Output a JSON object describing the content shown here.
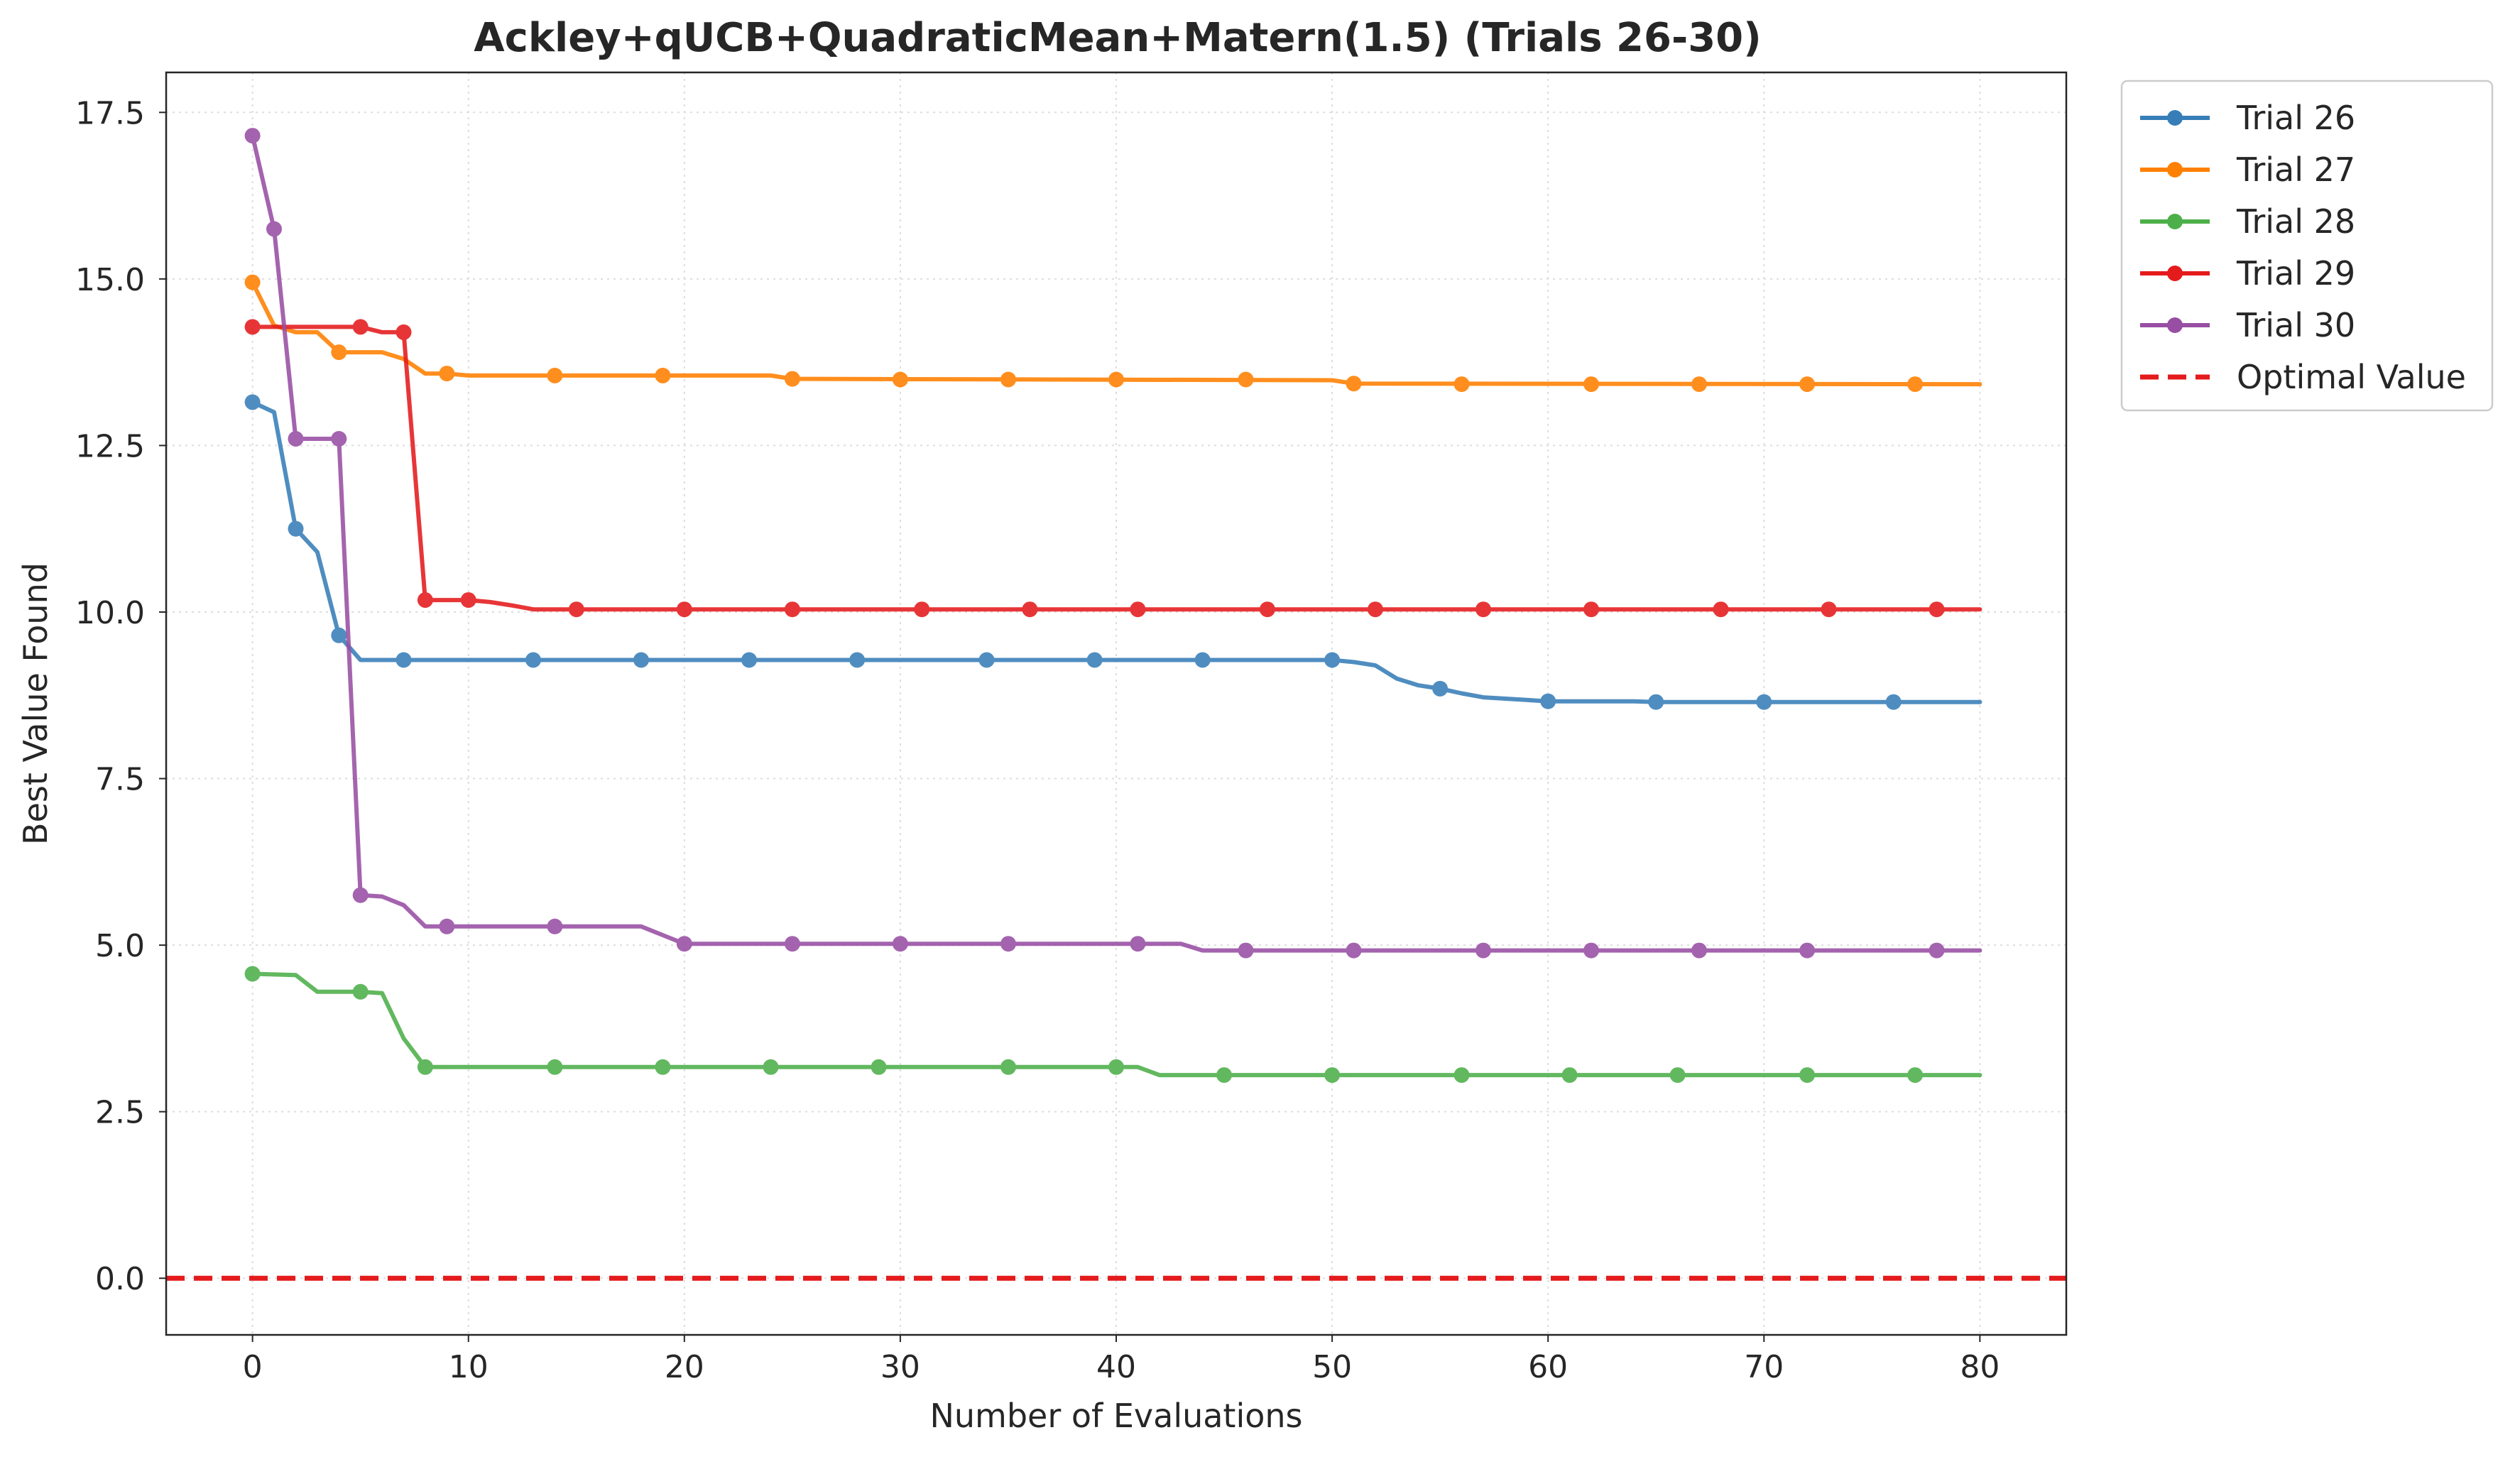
{
  "chart_data": {
    "type": "line",
    "title": "Ackley+qUCB+QuadraticMean+Matern(1.5) (Trials 26-30)",
    "xlabel": "Number of Evaluations",
    "ylabel": "Best Value Found",
    "xlim": [
      -4,
      84
    ],
    "ylim": [
      -0.85,
      18.1
    ],
    "xticks": [
      0,
      10,
      20,
      30,
      40,
      50,
      60,
      70,
      80
    ],
    "yticks": [
      0.0,
      2.5,
      5.0,
      7.5,
      10.0,
      12.5,
      15.0,
      17.5
    ],
    "xtick_labels": [
      "0",
      "10",
      "20",
      "30",
      "40",
      "50",
      "60",
      "70",
      "80"
    ],
    "ytick_labels": [
      "0.0",
      "2.5",
      "5.0",
      "7.5",
      "10.0",
      "12.5",
      "15.0",
      "17.5"
    ],
    "grid": true,
    "legend_position": "outside top-right",
    "reference_line": {
      "name": "Optimal Value",
      "y": 0.0,
      "color": "#e41a1c",
      "style": "dashed"
    },
    "series": [
      {
        "name": "Trial 26",
        "color": "#377eb8",
        "line": [
          [
            0,
            13.15
          ],
          [
            1,
            13.0
          ],
          [
            2,
            11.25
          ],
          [
            3,
            10.9
          ],
          [
            4,
            9.65
          ],
          [
            5,
            9.28
          ],
          [
            50,
            9.28
          ],
          [
            51,
            9.25
          ],
          [
            52,
            9.2
          ],
          [
            53,
            9.0
          ],
          [
            54,
            8.9
          ],
          [
            55,
            8.85
          ],
          [
            56,
            8.78
          ],
          [
            57,
            8.72
          ],
          [
            59,
            8.68
          ],
          [
            60,
            8.66
          ],
          [
            64,
            8.66
          ],
          [
            65,
            8.65
          ],
          [
            80,
            8.65
          ]
        ],
        "markers": [
          [
            0,
            13.15
          ],
          [
            2,
            11.25
          ],
          [
            4,
            9.65
          ],
          [
            7,
            9.28
          ],
          [
            13,
            9.28
          ],
          [
            18,
            9.28
          ],
          [
            23,
            9.28
          ],
          [
            28,
            9.28
          ],
          [
            34,
            9.28
          ],
          [
            39,
            9.28
          ],
          [
            44,
            9.28
          ],
          [
            50,
            9.28
          ],
          [
            55,
            8.85
          ],
          [
            60,
            8.66
          ],
          [
            65,
            8.65
          ],
          [
            70,
            8.65
          ],
          [
            76,
            8.65
          ]
        ]
      },
      {
        "name": "Trial 27",
        "color": "#ff7f00",
        "line": [
          [
            0,
            14.95
          ],
          [
            1,
            14.3
          ],
          [
            2,
            14.2
          ],
          [
            3,
            14.2
          ],
          [
            4,
            13.9
          ],
          [
            6,
            13.9
          ],
          [
            7,
            13.8
          ],
          [
            8,
            13.58
          ],
          [
            9,
            13.58
          ],
          [
            10,
            13.55
          ],
          [
            11,
            13.55
          ],
          [
            24,
            13.55
          ],
          [
            25,
            13.5
          ],
          [
            50,
            13.48
          ],
          [
            51,
            13.43
          ],
          [
            80,
            13.42
          ]
        ],
        "markers": [
          [
            0,
            14.95
          ],
          [
            4,
            13.9
          ],
          [
            9,
            13.58
          ],
          [
            14,
            13.55
          ],
          [
            19,
            13.55
          ],
          [
            25,
            13.5
          ],
          [
            30,
            13.49
          ],
          [
            35,
            13.49
          ],
          [
            40,
            13.49
          ],
          [
            46,
            13.49
          ],
          [
            51,
            13.43
          ],
          [
            56,
            13.42
          ],
          [
            62,
            13.42
          ],
          [
            67,
            13.42
          ],
          [
            72,
            13.42
          ],
          [
            77,
            13.42
          ]
        ]
      },
      {
        "name": "Trial 28",
        "color": "#4daf4a",
        "line": [
          [
            0,
            4.57
          ],
          [
            1,
            4.56
          ],
          [
            2,
            4.55
          ],
          [
            3,
            4.3
          ],
          [
            5,
            4.3
          ],
          [
            6,
            4.28
          ],
          [
            7,
            3.6
          ],
          [
            8,
            3.17
          ],
          [
            41,
            3.17
          ],
          [
            42,
            3.05
          ],
          [
            80,
            3.05
          ]
        ],
        "markers": [
          [
            0,
            4.57
          ],
          [
            5,
            4.3
          ],
          [
            8,
            3.17
          ],
          [
            14,
            3.17
          ],
          [
            19,
            3.17
          ],
          [
            24,
            3.17
          ],
          [
            29,
            3.17
          ],
          [
            35,
            3.17
          ],
          [
            40,
            3.17
          ],
          [
            45,
            3.05
          ],
          [
            50,
            3.05
          ],
          [
            56,
            3.05
          ],
          [
            61,
            3.05
          ],
          [
            66,
            3.05
          ],
          [
            72,
            3.05
          ],
          [
            77,
            3.05
          ]
        ]
      },
      {
        "name": "Trial 29",
        "color": "#e41a1c",
        "line": [
          [
            0,
            14.28
          ],
          [
            5,
            14.28
          ],
          [
            6,
            14.2
          ],
          [
            7,
            14.2
          ],
          [
            8,
            10.18
          ],
          [
            9,
            10.18
          ],
          [
            10,
            10.18
          ],
          [
            11,
            10.15
          ],
          [
            12,
            10.1
          ],
          [
            13,
            10.04
          ],
          [
            80,
            10.04
          ]
        ],
        "markers": [
          [
            0,
            14.28
          ],
          [
            5,
            14.28
          ],
          [
            7,
            14.2
          ],
          [
            8,
            10.18
          ],
          [
            10,
            10.18
          ],
          [
            15,
            10.04
          ],
          [
            20,
            10.04
          ],
          [
            25,
            10.04
          ],
          [
            31,
            10.04
          ],
          [
            36,
            10.04
          ],
          [
            41,
            10.04
          ],
          [
            47,
            10.04
          ],
          [
            52,
            10.04
          ],
          [
            57,
            10.04
          ],
          [
            62,
            10.04
          ],
          [
            68,
            10.04
          ],
          [
            73,
            10.04
          ],
          [
            78,
            10.04
          ]
        ]
      },
      {
        "name": "Trial 30",
        "color": "#984ea3",
        "line": [
          [
            0,
            17.15
          ],
          [
            1,
            15.75
          ],
          [
            2,
            12.6
          ],
          [
            4,
            12.6
          ],
          [
            5,
            5.75
          ],
          [
            6,
            5.73
          ],
          [
            7,
            5.6
          ],
          [
            8,
            5.28
          ],
          [
            18,
            5.28
          ],
          [
            19,
            5.15
          ],
          [
            20,
            5.02
          ],
          [
            43,
            5.02
          ],
          [
            44,
            4.92
          ],
          [
            80,
            4.92
          ]
        ],
        "markers": [
          [
            0,
            17.15
          ],
          [
            1,
            15.75
          ],
          [
            2,
            12.6
          ],
          [
            4,
            12.6
          ],
          [
            5,
            5.75
          ],
          [
            9,
            5.28
          ],
          [
            14,
            5.28
          ],
          [
            20,
            5.02
          ],
          [
            25,
            5.02
          ],
          [
            30,
            5.02
          ],
          [
            35,
            5.02
          ],
          [
            41,
            5.02
          ],
          [
            46,
            4.92
          ],
          [
            51,
            4.92
          ],
          [
            57,
            4.92
          ],
          [
            62,
            4.92
          ],
          [
            67,
            4.92
          ],
          [
            72,
            4.92
          ],
          [
            78,
            4.92
          ]
        ]
      }
    ]
  }
}
